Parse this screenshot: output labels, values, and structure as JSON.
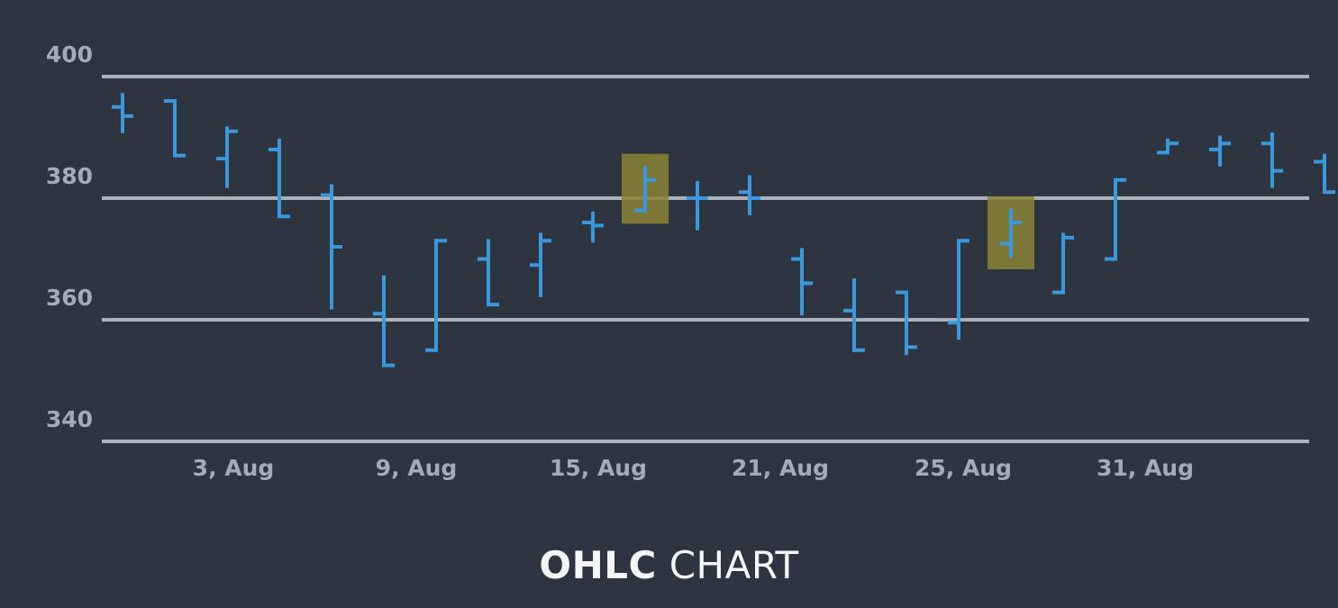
{
  "caption": {
    "bold": "OHLC",
    "light": "CHART"
  },
  "chart_data": {
    "type": "ohlc",
    "title": "OHLC CHART",
    "xlabel": "",
    "ylabel": "",
    "ylim": [
      340,
      400
    ],
    "yticks": [
      400,
      380,
      360,
      340
    ],
    "grid": true,
    "xticks": [
      {
        "day": 3,
        "label": "3, Aug"
      },
      {
        "day": 9,
        "label": "9, Aug"
      },
      {
        "day": 15,
        "label": "15, Aug"
      },
      {
        "day": 21,
        "label": "21, Aug"
      },
      {
        "day": 25,
        "label": "25, Aug"
      },
      {
        "day": 31,
        "label": "31, Aug"
      }
    ],
    "series": [
      {
        "date": "1, Aug",
        "day": 1,
        "open": 395.0,
        "high": 397.0,
        "low": 391.0,
        "close": 393.5
      },
      {
        "date": "2, Aug",
        "day": 2,
        "open": 396.0,
        "high": 396.0,
        "low": 387.0,
        "close": 387.0
      },
      {
        "date": "3, Aug",
        "day": 3,
        "open": 386.5,
        "high": 391.5,
        "low": 382.0,
        "close": 391.0
      },
      {
        "date": "4, Aug",
        "day": 4,
        "open": 388.0,
        "high": 389.5,
        "low": 377.0,
        "close": 377.0
      },
      {
        "date": "5, Aug",
        "day": 5,
        "open": 380.5,
        "high": 382.0,
        "low": 362.0,
        "close": 372.0
      },
      {
        "date": "6, Aug",
        "day": 6,
        "open": 361.0,
        "high": 367.0,
        "low": 352.5,
        "close": 352.5
      },
      {
        "date": "7, Aug",
        "day": 7,
        "open": 355.0,
        "high": 373.0,
        "low": 355.0,
        "close": 373.0
      },
      {
        "date": "8, Aug",
        "day": 8,
        "open": 370.0,
        "high": 373.0,
        "low": 362.5,
        "close": 362.5
      },
      {
        "date": "9, Aug",
        "day": 9,
        "open": 369.0,
        "high": 374.0,
        "low": 364.0,
        "close": 373.0
      },
      {
        "date": "10, Aug",
        "day": 10,
        "open": 376.0,
        "high": 377.5,
        "low": 373.0,
        "close": 375.5
      },
      {
        "date": "11, Aug",
        "day": 11,
        "open": 378.0,
        "high": 385.0,
        "low": 378.0,
        "close": 383.0
      },
      {
        "date": "12, Aug",
        "day": 12,
        "open": 380.0,
        "high": 382.5,
        "low": 375.0,
        "close": 380.0
      },
      {
        "date": "13, Aug",
        "day": 13,
        "open": 381.0,
        "high": 383.5,
        "low": 377.5,
        "close": 380.0
      },
      {
        "date": "14, Aug",
        "day": 14,
        "open": 370.0,
        "high": 371.5,
        "low": 361.0,
        "close": 366.0
      },
      {
        "date": "15, Aug",
        "day": 15,
        "open": 361.5,
        "high": 366.5,
        "low": 355.0,
        "close": 355.0
      },
      {
        "date": "16, Aug",
        "day": 16,
        "open": 364.5,
        "high": 364.5,
        "low": 354.5,
        "close": 355.5
      },
      {
        "date": "17, Aug",
        "day": 17,
        "open": 359.5,
        "high": 373.0,
        "low": 357.0,
        "close": 373.0
      },
      {
        "date": "18, Aug",
        "day": 18,
        "open": 372.5,
        "high": 378.0,
        "low": 370.5,
        "close": 376.0
      },
      {
        "date": "19, Aug",
        "day": 19,
        "open": 364.5,
        "high": 374.0,
        "low": 364.5,
        "close": 373.5
      },
      {
        "date": "20, Aug",
        "day": 20,
        "open": 370.0,
        "high": 383.0,
        "low": 370.0,
        "close": 383.0
      },
      {
        "date": "21, Aug",
        "day": 21,
        "open": 387.5,
        "high": 389.5,
        "low": 387.5,
        "close": 389.0
      },
      {
        "date": "22, Aug",
        "day": 22,
        "open": 388.0,
        "high": 390.0,
        "low": 385.5,
        "close": 389.0
      },
      {
        "date": "23, Aug",
        "day": 23,
        "open": 389.0,
        "high": 390.5,
        "low": 382.0,
        "close": 384.5
      },
      {
        "date": "24, Aug",
        "day": 24,
        "open": 386.0,
        "high": 387.0,
        "low": 381.0,
        "close": 381.0
      }
    ],
    "highlighted_dates": [
      "11, Aug",
      "18, Aug"
    ],
    "colors": {
      "background": "#2c3540",
      "bars": "#3d97db",
      "grid": "#a9b1ba",
      "tick_labels": "#a3abb4",
      "highlight": "#8a8236"
    }
  }
}
